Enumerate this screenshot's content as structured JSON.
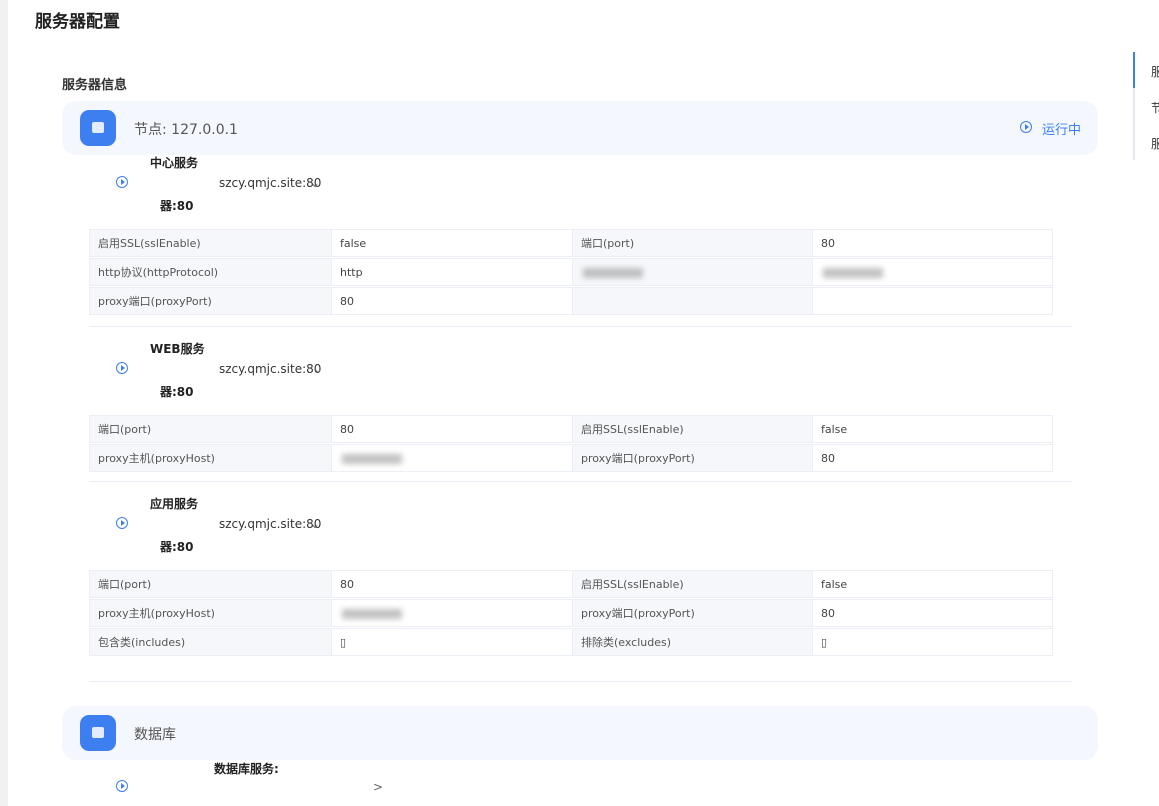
{
  "header": {
    "title": "服务器配置"
  },
  "section_title": "服务器信息",
  "node": {
    "label": "节点: 127.0.0.1",
    "status": "运行中"
  },
  "services": [
    {
      "name": "中心服务",
      "host": "szcy.qmjc.site:80",
      "tail": "器:80",
      "rows": [
        [
          "启用SSL(sslEnable)",
          "false",
          "端口(port)",
          "80"
        ],
        [
          "http协议(httpProtocol)",
          "http",
          null,
          null
        ],
        [
          "proxy端口(proxyPort)",
          "80"
        ]
      ]
    },
    {
      "name": "WEB服务",
      "host": "szcy.qmjc.site:80",
      "tail": "器:80",
      "rows": [
        [
          "端口(port)",
          "80",
          "启用SSL(sslEnable)",
          "false"
        ],
        [
          "proxy主机(proxyHost)",
          null,
          "proxy端口(proxyPort)",
          "80"
        ]
      ]
    },
    {
      "name": "应用服务",
      "host": "szcy.qmjc.site:80",
      "tail": "器:80",
      "rows": [
        [
          "端口(port)",
          "80",
          "启用SSL(sslEnable)",
          "false"
        ],
        [
          "proxy主机(proxyHost)",
          null,
          "proxy端口(proxyPort)",
          "80"
        ],
        [
          "包含类(includes)",
          "▯",
          "排除类(excludes)",
          "▯"
        ]
      ]
    }
  ],
  "database": {
    "label": "数据库",
    "service": "数据库服务:"
  },
  "side_nav": [
    "服",
    "节",
    "服"
  ]
}
